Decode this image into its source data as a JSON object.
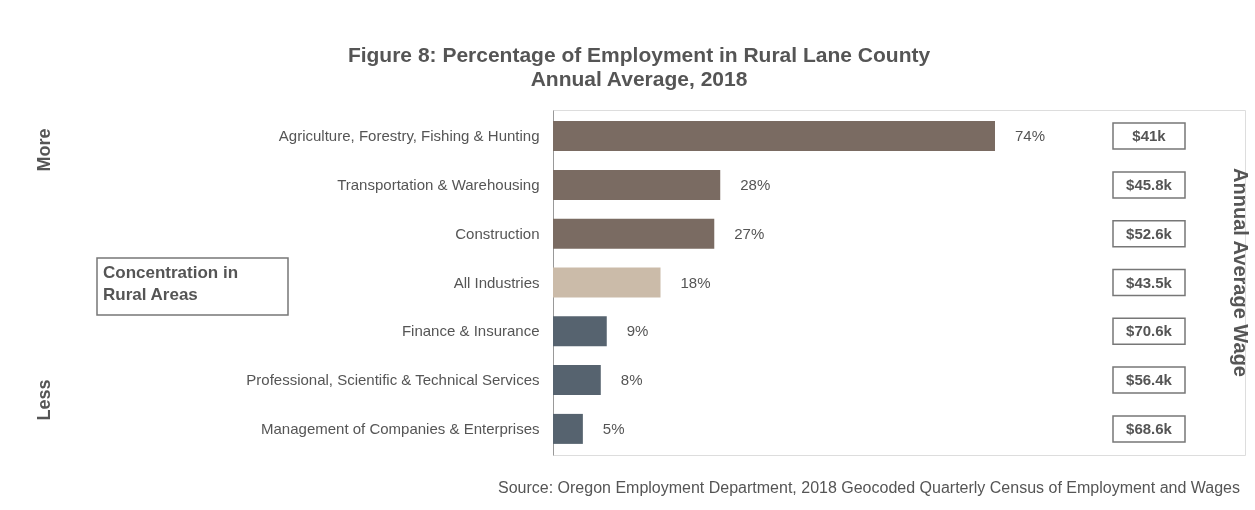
{
  "chart_data": {
    "type": "bar",
    "orientation": "horizontal",
    "title": "Figure 8: Percentage of Employment in Rural Lane County",
    "subtitle": "Annual Average, 2018",
    "categories": [
      "Agriculture, Forestry, Fishing & Hunting",
      "Transportation & Warehousing",
      "Construction",
      "All Industries",
      "Finance & Insurance",
      "Professional, Scientific & Technical Services",
      "Management of Companies & Enterprises"
    ],
    "values": [
      74,
      28,
      27,
      18,
      9,
      8,
      5
    ],
    "value_labels": [
      "74%",
      "28%",
      "27%",
      "18%",
      "9%",
      "8%",
      "5%"
    ],
    "colors": [
      "#7a6b62",
      "#7a6b62",
      "#7a6b62",
      "#cbbba9",
      "#56636f",
      "#56636f",
      "#56636f"
    ],
    "annotations": [
      "More",
      "Less",
      "Concentration in Rural Areas",
      "$41k",
      "$45.8k",
      "$52.6k",
      "$43.5k",
      "$70.6k",
      "$56.4k",
      "$68.6k",
      "Annual Average Wage",
      "Source: Oregon Employment Department, 2018 Geocoded Quarterly Census of Employment and Wages"
    ],
    "grid": false
  }
}
